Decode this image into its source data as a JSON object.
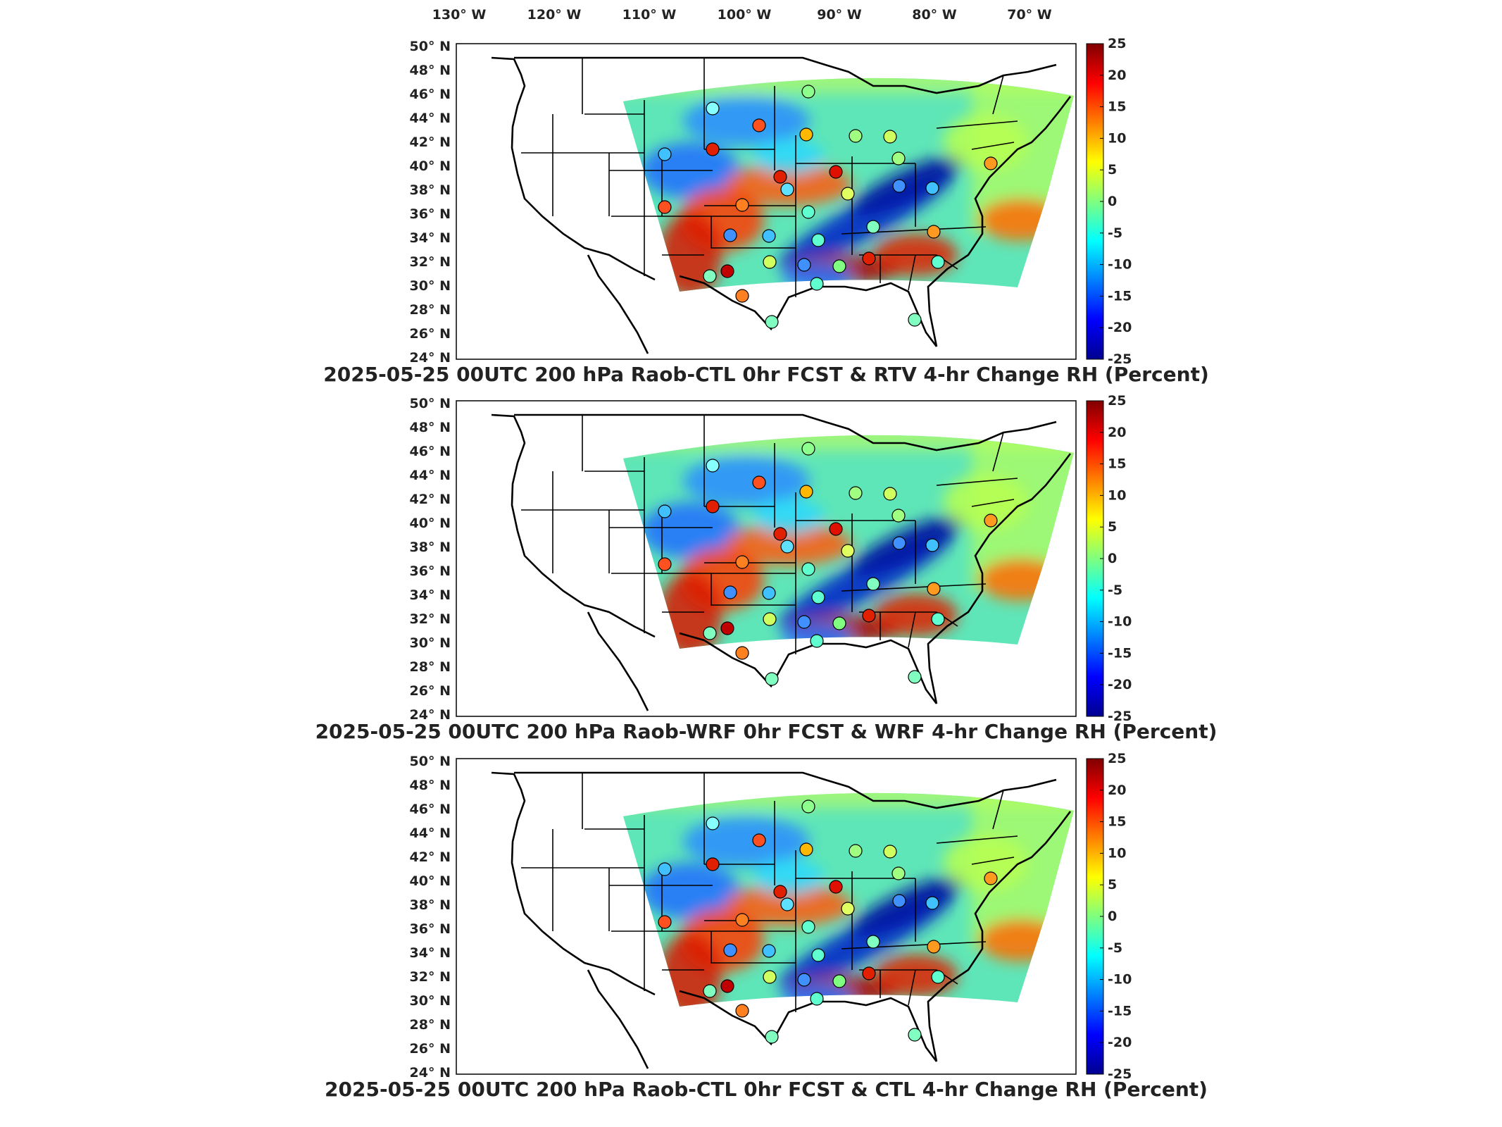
{
  "top_axis": {
    "lon_labels": [
      "130",
      "120",
      "110",
      "100",
      "90",
      "80",
      "70"
    ],
    "lon_suffix": "W"
  },
  "lat_axis": {
    "lat_labels": [
      "50",
      "48",
      "46",
      "44",
      "42",
      "40",
      "38",
      "36",
      "34",
      "32",
      "30",
      "28",
      "26",
      "24"
    ],
    "lat_suffix": "N"
  },
  "colorbar": {
    "ticks": [
      "25",
      "20",
      "15",
      "10",
      "5",
      "0",
      "-5",
      "-10",
      "-15",
      "-20",
      "-25"
    ],
    "colormap": "jet",
    "range": [
      -25,
      25
    ]
  },
  "panels": [
    {
      "title": "2025-05-25 00UTC 200 hPa Raob-CTL 0hr FCST & RTV 4-hr Change RH (Percent)"
    },
    {
      "title": "2025-05-25 00UTC 200 hPa Raob-WRF 0hr FCST & WRF 4-hr Change RH (Percent)"
    },
    {
      "title": "2025-05-25 00UTC 200 hPa Raob-CTL 0hr FCST & CTL 4-hr Change RH (Percent)"
    }
  ],
  "colors": {
    "border": "#000000",
    "background": "#ffffff",
    "title_text": "#222222"
  }
}
